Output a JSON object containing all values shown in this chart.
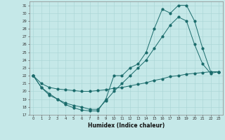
{
  "xlabel": "Humidex (Indice chaleur)",
  "ylabel": "",
  "bg_color": "#c5e8e8",
  "line_color": "#1a6b6b",
  "grid_color": "#a8d4d4",
  "ylim": [
    17,
    31.5
  ],
  "xlim": [
    -0.5,
    23.5
  ],
  "yticks": [
    17,
    18,
    19,
    20,
    21,
    22,
    23,
    24,
    25,
    26,
    27,
    28,
    29,
    30,
    31
  ],
  "xticks": [
    0,
    1,
    2,
    3,
    4,
    5,
    6,
    7,
    8,
    9,
    10,
    11,
    12,
    13,
    14,
    15,
    16,
    17,
    18,
    19,
    20,
    21,
    22,
    23
  ],
  "line1_x": [
    0,
    1,
    2,
    3,
    4,
    5,
    6,
    7,
    8,
    9,
    10,
    11,
    12,
    13,
    14,
    15,
    16,
    17,
    18,
    19,
    20,
    21,
    22,
    23
  ],
  "line1_y": [
    22.0,
    20.5,
    19.5,
    19.0,
    18.3,
    17.9,
    17.6,
    17.5,
    17.5,
    19.0,
    22.0,
    22.0,
    23.0,
    23.5,
    25.0,
    28.0,
    30.5,
    30.0,
    31.0,
    31.0,
    29.0,
    25.5,
    22.5,
    22.5
  ],
  "line2_x": [
    0,
    1,
    2,
    3,
    4,
    5,
    6,
    7,
    8,
    9,
    10,
    11,
    12,
    13,
    14,
    15,
    16,
    17,
    18,
    19,
    20,
    21,
    22,
    23
  ],
  "line2_y": [
    22.0,
    20.5,
    19.7,
    19.0,
    18.5,
    18.2,
    18.0,
    17.7,
    17.7,
    18.8,
    20.0,
    21.0,
    22.0,
    23.0,
    24.0,
    25.5,
    27.0,
    28.5,
    29.5,
    29.0,
    26.0,
    23.5,
    22.3,
    22.5
  ],
  "line3_x": [
    0,
    1,
    2,
    3,
    4,
    5,
    6,
    7,
    8,
    9,
    10,
    11,
    12,
    13,
    14,
    15,
    16,
    17,
    18,
    19,
    20,
    21,
    22,
    23
  ],
  "line3_y": [
    22.0,
    21.0,
    20.5,
    20.3,
    20.2,
    20.1,
    20.0,
    20.0,
    20.1,
    20.2,
    20.4,
    20.5,
    20.7,
    20.9,
    21.1,
    21.4,
    21.6,
    21.9,
    22.0,
    22.2,
    22.3,
    22.4,
    22.5,
    22.5
  ]
}
